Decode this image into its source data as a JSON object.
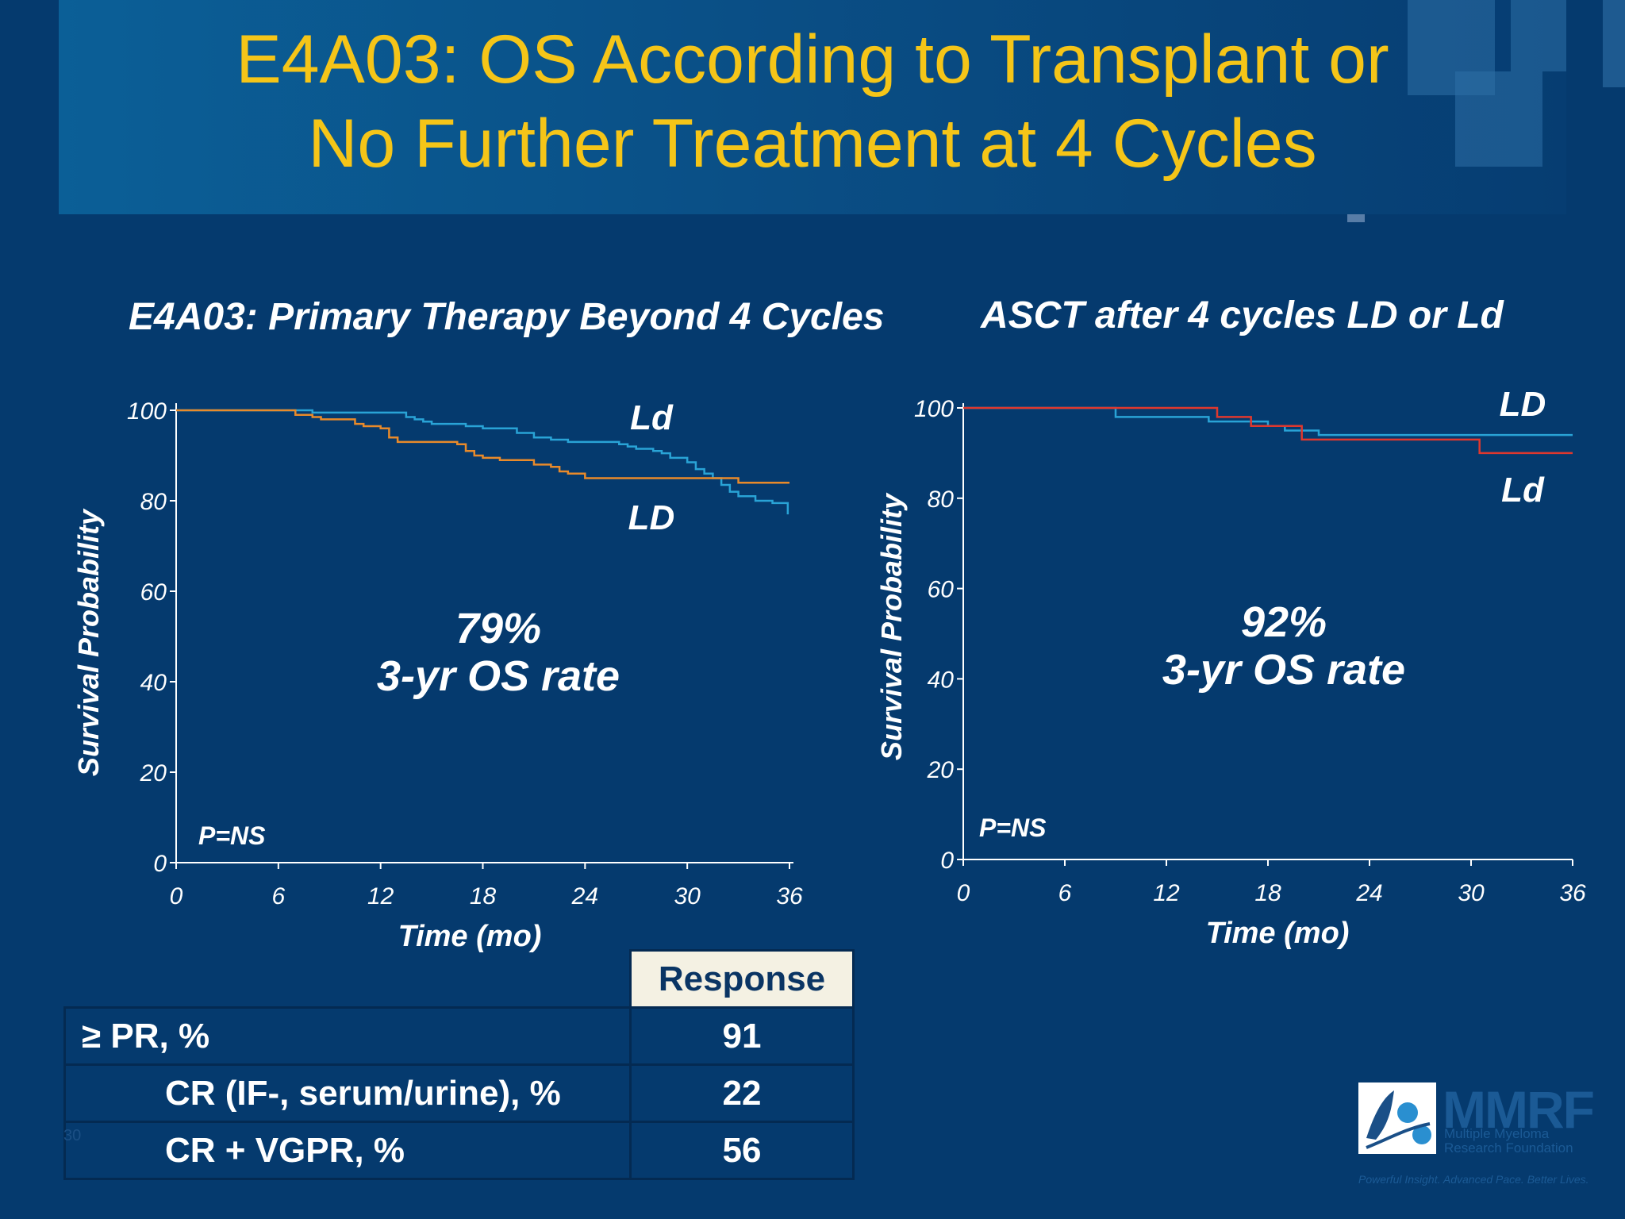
{
  "slide": {
    "title_line1": "E4A03: OS According to Transplant or",
    "title_line2": "No Further Treatment at 4 Cycles",
    "slide_number": "30"
  },
  "colors": {
    "title": "#f5c518",
    "background": "#053a6e",
    "series_LD": "#29a3d6",
    "series_Ld_left": "#e98a2a",
    "series_Ld_right": "#e0382e"
  },
  "chart_data": [
    {
      "type": "line",
      "title": "E4A03: Primary Therapy Beyond 4 Cycles",
      "xlabel": "Time (mo)",
      "ylabel": "Survival Probability",
      "xlim": [
        0,
        36
      ],
      "ylim": [
        0,
        100
      ],
      "xticks": [
        "0",
        "6",
        "12",
        "18",
        "24",
        "30",
        "36"
      ],
      "yticks": [
        "0",
        "20",
        "40",
        "60",
        "80",
        "100"
      ],
      "annotation_rate": "79%",
      "annotation_label": "3-yr OS rate",
      "pvalue": "P=NS",
      "series": [
        {
          "name": "Ld",
          "color": "#29a3d6",
          "points": [
            [
              0,
              100
            ],
            [
              7,
              100
            ],
            [
              8,
              99.5
            ],
            [
              13,
              99.5
            ],
            [
              13.5,
              98.5
            ],
            [
              14,
              98
            ],
            [
              14.5,
              97.5
            ],
            [
              15,
              97
            ],
            [
              16,
              97
            ],
            [
              17,
              96.5
            ],
            [
              18,
              96
            ],
            [
              19,
              96
            ],
            [
              20,
              95
            ],
            [
              21,
              94
            ],
            [
              22,
              93.5
            ],
            [
              23,
              93
            ],
            [
              25,
              93
            ],
            [
              26,
              92.5
            ],
            [
              26.5,
              92
            ],
            [
              27,
              91.5
            ],
            [
              28,
              91
            ],
            [
              28.5,
              90.5
            ],
            [
              29,
              89.5
            ],
            [
              30,
              88.5
            ],
            [
              30.5,
              87
            ],
            [
              31,
              86
            ],
            [
              31.5,
              85
            ],
            [
              32,
              83.5
            ],
            [
              32.5,
              82
            ],
            [
              33,
              81
            ],
            [
              34,
              80
            ],
            [
              35,
              79.5
            ],
            [
              35.8,
              79.5
            ],
            [
              35.9,
              77
            ]
          ]
        },
        {
          "name": "LD",
          "color": "#e98a2a",
          "points": [
            [
              0,
              100
            ],
            [
              6.5,
              100
            ],
            [
              7,
              99
            ],
            [
              8,
              98.5
            ],
            [
              8.5,
              98
            ],
            [
              10,
              98
            ],
            [
              10.5,
              97
            ],
            [
              11,
              96.5
            ],
            [
              12,
              96
            ],
            [
              12.5,
              94
            ],
            [
              13,
              93
            ],
            [
              16,
              93
            ],
            [
              16.5,
              92.5
            ],
            [
              17,
              91
            ],
            [
              17.5,
              90
            ],
            [
              18,
              89.5
            ],
            [
              19,
              89
            ],
            [
              21,
              88
            ],
            [
              22,
              87.5
            ],
            [
              22.5,
              86.5
            ],
            [
              23,
              86
            ],
            [
              24,
              85
            ],
            [
              26,
              85
            ],
            [
              30,
              85
            ],
            [
              32,
              85
            ],
            [
              33,
              84
            ],
            [
              35,
              84
            ],
            [
              36,
              84
            ]
          ]
        }
      ],
      "curve_labels": {
        "upper": "Ld",
        "lower": "LD"
      }
    },
    {
      "type": "line",
      "title": "ASCT after 4 cycles LD or Ld",
      "xlabel": "Time (mo)",
      "ylabel": "Survival Probability",
      "xlim": [
        0,
        36
      ],
      "ylim": [
        0,
        100
      ],
      "xticks": [
        "0",
        "6",
        "12",
        "18",
        "24",
        "30",
        "36"
      ],
      "yticks": [
        "0",
        "20",
        "40",
        "60",
        "80",
        "100"
      ],
      "annotation_rate": "92%",
      "annotation_label": "3-yr OS rate",
      "pvalue": "P=NS",
      "series": [
        {
          "name": "LD",
          "color": "#29a3d6",
          "points": [
            [
              0,
              100
            ],
            [
              9,
              100
            ],
            [
              9,
              98
            ],
            [
              14,
              98
            ],
            [
              14.5,
              97
            ],
            [
              16,
              97
            ],
            [
              18,
              96
            ],
            [
              19,
              95
            ],
            [
              21,
              95
            ],
            [
              21,
              94
            ],
            [
              36,
              94
            ]
          ]
        },
        {
          "name": "Ld",
          "color": "#e0382e",
          "points": [
            [
              0,
              100
            ],
            [
              15,
              100
            ],
            [
              15,
              98
            ],
            [
              17,
              98
            ],
            [
              17,
              96
            ],
            [
              20,
              96
            ],
            [
              20,
              93
            ],
            [
              30.5,
              93
            ],
            [
              30.5,
              90
            ],
            [
              36,
              90
            ]
          ]
        }
      ],
      "curve_labels": {
        "upper": "LD",
        "lower": "Ld"
      }
    }
  ],
  "table": {
    "header": "Response",
    "rows": [
      {
        "label": "≥ PR, %",
        "value": "91"
      },
      {
        "label": "CR (IF-, serum/urine), %",
        "value": "22"
      },
      {
        "label": "CR + VGPR, %",
        "value": "56"
      }
    ]
  },
  "logo": {
    "name": "MMRF",
    "sub_line1": "Multiple Myeloma",
    "sub_line2": "Research Foundation",
    "tagline": "Powerful Insight. Advanced Pace. Better Lives."
  }
}
